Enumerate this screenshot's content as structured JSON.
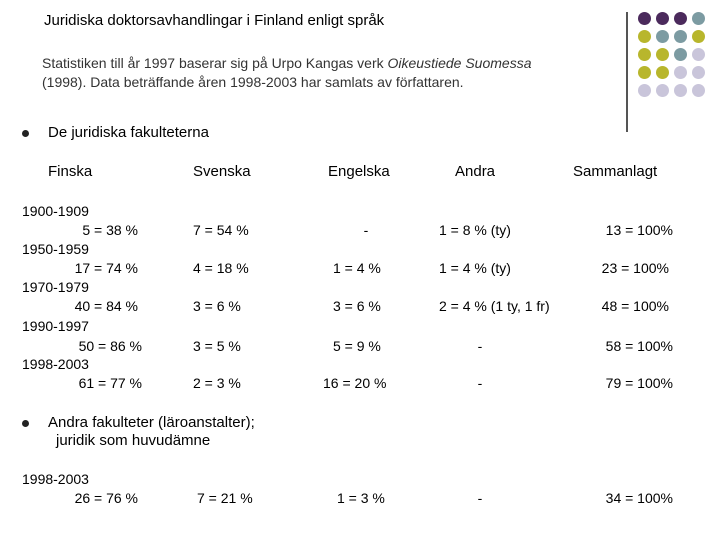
{
  "title": "Juridiska doktorsavhandlingar i Finland enligt språk",
  "intro": {
    "line1_prefix": "Statistiken till år 1997 baserar sig på Urpo Kangas verk ",
    "line1_italic": "Oikeustiede Suomessa",
    "line2": "(1998). Data beträffande åren 1998-2003 har samlats av författaren."
  },
  "section1": {
    "heading": "De juridiska fakulteterna",
    "columns": [
      "Finska",
      "Svenska",
      "Engelska",
      "Andra",
      "Sammanlagt"
    ],
    "rows": [
      {
        "period": "1900-1909",
        "finska": "5 = 38 %",
        "svenska": "7  =  54 %",
        "engelska": "-",
        "andra": "1 = 8 % (ty)",
        "total": "13 = 100%"
      },
      {
        "period": "1950-1959",
        "finska": "17 = 74 %",
        "svenska": "4  = 18 %",
        "engelska": "1 =   4 %",
        "andra": "1 = 4 % (ty)",
        "total": "23 = 100%"
      },
      {
        "period": "1970-1979",
        "finska": "40 = 84 %",
        "svenska": "3  =   6 %",
        "engelska": "3 =   6 %",
        "andra": "2 = 4 % (1 ty, 1 fr)",
        "total": "48 = 100%"
      },
      {
        "period": "1990-1997",
        "finska": "50 = 86  %",
        "svenska": "3  =   5 %",
        "engelska": "5 =   9 %",
        "andra": "-",
        "total": "58 = 100%"
      },
      {
        "period": "1998-2003",
        "finska": "61 = 77 %",
        "svenska": "2  =   3 %",
        "engelska": "16 = 20 %",
        "andra": "-",
        "total": "79 = 100%"
      }
    ]
  },
  "section2": {
    "heading_line1": "Andra fakulteter (läroanstalter);",
    "heading_line2": "juridik som huvudämne",
    "row": {
      "period": "1998-2003",
      "finska": "26 = 76 %",
      "svenska": "7 = 21 %",
      "engelska": "1 = 3 %",
      "andra": "-",
      "total": "34 = 100%"
    }
  },
  "decoration": {
    "colors": {
      "purple": "#4b2a5c",
      "olive": "#b8b62c",
      "teal": "#7c9ba2",
      "lavender": "#c9c5da",
      "line": "#555555"
    }
  }
}
